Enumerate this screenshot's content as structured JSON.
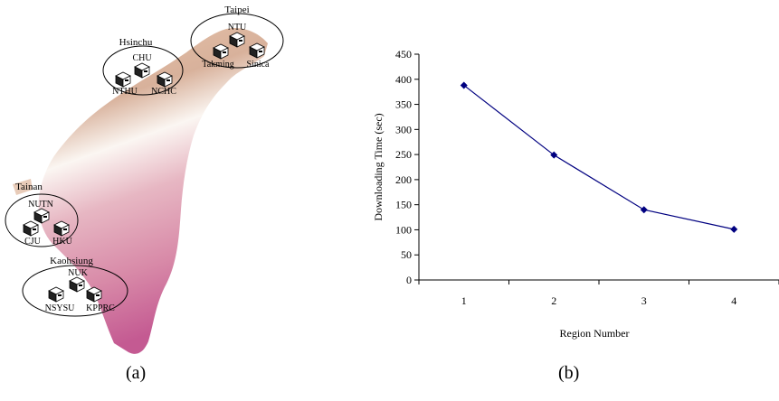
{
  "map": {
    "regions": [
      {
        "name": "Taipei",
        "sites": [
          "NTU",
          "Takming",
          "Sinica"
        ]
      },
      {
        "name": "Hsinchu",
        "sites": [
          "CHU",
          "NTHU",
          "NCHC"
        ]
      },
      {
        "name": "Tainan",
        "sites": [
          "NUTN",
          "CJU",
          "HKU"
        ]
      },
      {
        "name": "Kaohsiung",
        "sites": [
          "NUK",
          "NSYSU",
          "KPPRC"
        ]
      }
    ],
    "caption": "(a)"
  },
  "chart_data": {
    "type": "line",
    "x": [
      1,
      2,
      3,
      4
    ],
    "series": [
      {
        "values": [
          388,
          249,
          140,
          101
        ],
        "color": "#000080",
        "marker": "diamond"
      }
    ],
    "xlabel": "Region Number",
    "ylabel": "Downloading Time (sec)",
    "ylim": [
      0,
      450
    ],
    "yticks": [
      0,
      50,
      100,
      150,
      200,
      250,
      300,
      350,
      400,
      450
    ],
    "xticks": [
      1,
      2,
      3,
      4
    ],
    "grid": false,
    "caption": "(b)"
  }
}
